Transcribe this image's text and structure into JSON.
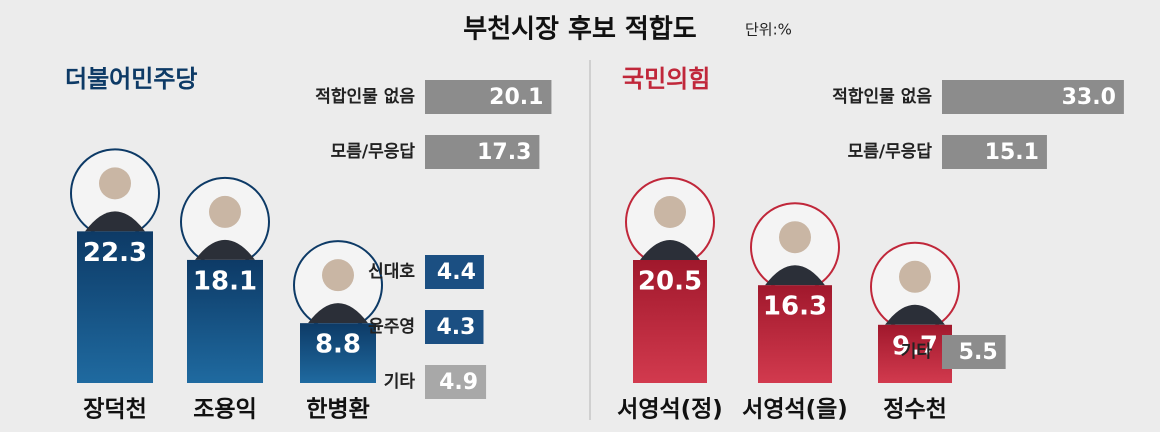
{
  "title": "부천시장 후보 적합도",
  "unit": "단위:%",
  "chart_data": [
    {
      "type": "bar",
      "party": "더불어민주당",
      "color": "#0d3a66",
      "categories": [
        "장덕천",
        "조용익",
        "한병환"
      ],
      "values": [
        22.3,
        18.1,
        8.8
      ],
      "others": {
        "categories": [
          "적합인물 없음",
          "모름/무응답",
          "신대호",
          "윤주영",
          "기타"
        ],
        "values": [
          20.1,
          17.3,
          4.4,
          4.3,
          4.9
        ],
        "colors": [
          "#8c8c8c",
          "#8c8c8c",
          "#1b4f82",
          "#1b4f82",
          "#a8a8a8"
        ]
      }
    },
    {
      "type": "bar",
      "party": "국민의힘",
      "color": "#a0182c",
      "categories": [
        "서영석(정)",
        "서영석(을)",
        "정수천"
      ],
      "values": [
        20.5,
        16.3,
        9.7
      ],
      "others": {
        "categories": [
          "적합인물 없음",
          "모름/무응답",
          "기타"
        ],
        "values": [
          33.0,
          15.1,
          5.5
        ],
        "value_labels": [
          "33.0",
          "15.1",
          "5.5"
        ],
        "colors": [
          "#8c8c8c",
          "#8c8c8c",
          "#8c8c8c"
        ]
      }
    }
  ]
}
